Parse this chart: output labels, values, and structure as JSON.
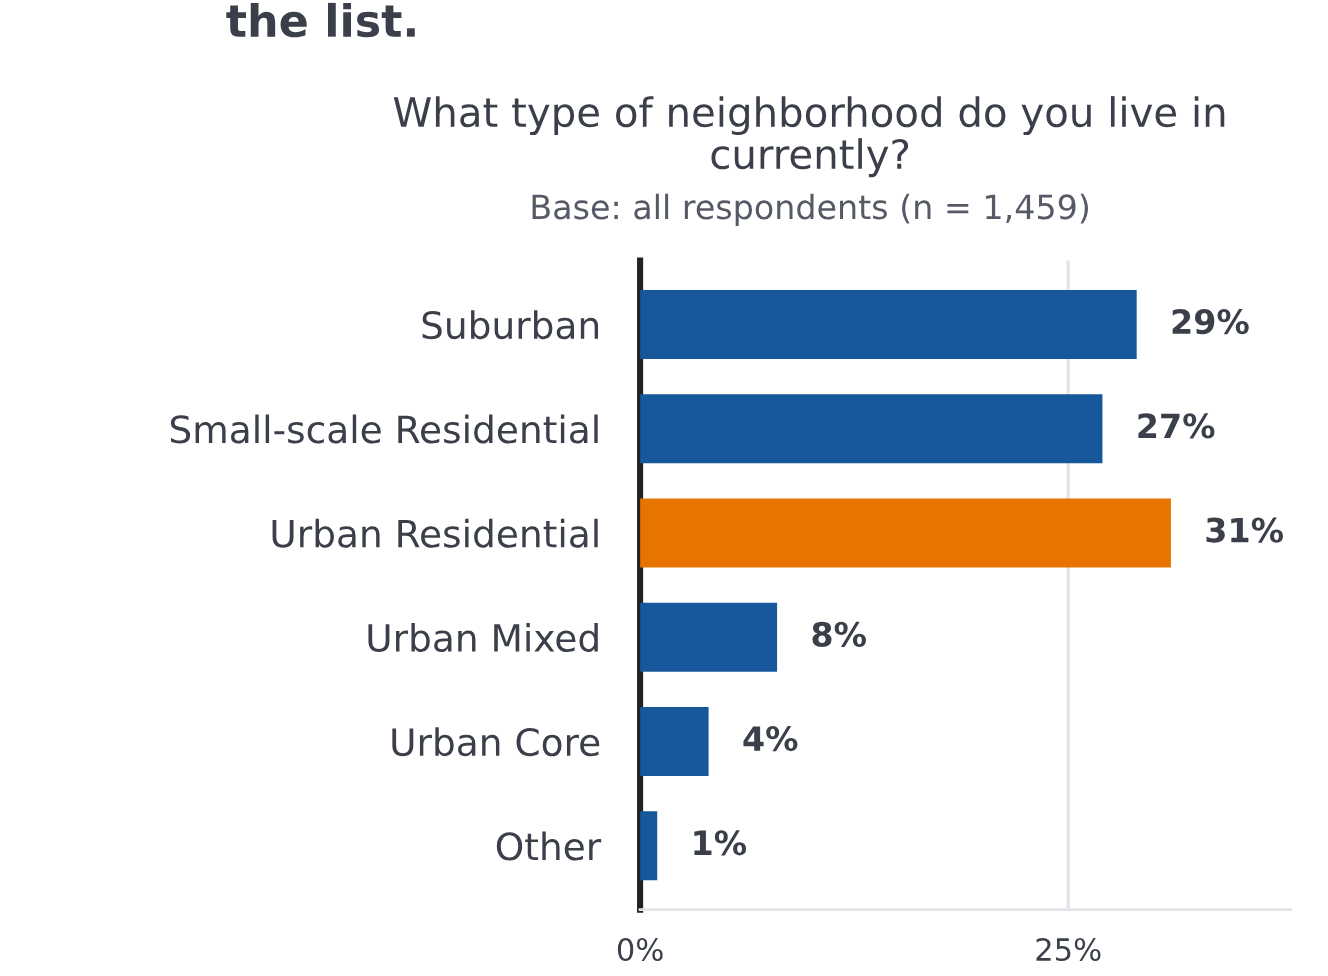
{
  "chart_data": {
    "type": "bar",
    "orientation": "horizontal",
    "title": "What type of neighborhood do you live in currently?",
    "subtitle": "Base: all respondents (n = 1,459)",
    "annotations": [
      "the list."
    ],
    "categories": [
      "Suburban",
      "Small-scale Residential",
      "Urban Residential",
      "Urban Mixed",
      "Urban Core",
      "Other"
    ],
    "values": [
      29,
      27,
      31,
      8,
      4,
      1
    ],
    "colors": [
      "#17589c",
      "#17589c",
      "#e87400",
      "#17589c",
      "#17589c",
      "#17589c"
    ],
    "value_labels": [
      "29%",
      "27%",
      "31%",
      "8%",
      "4%",
      "1%"
    ],
    "xlim": [
      0,
      38
    ],
    "xticks": [
      {
        "value": 0,
        "label": "0%"
      },
      {
        "value": 25,
        "label": "25%"
      }
    ],
    "grid": "x"
  }
}
